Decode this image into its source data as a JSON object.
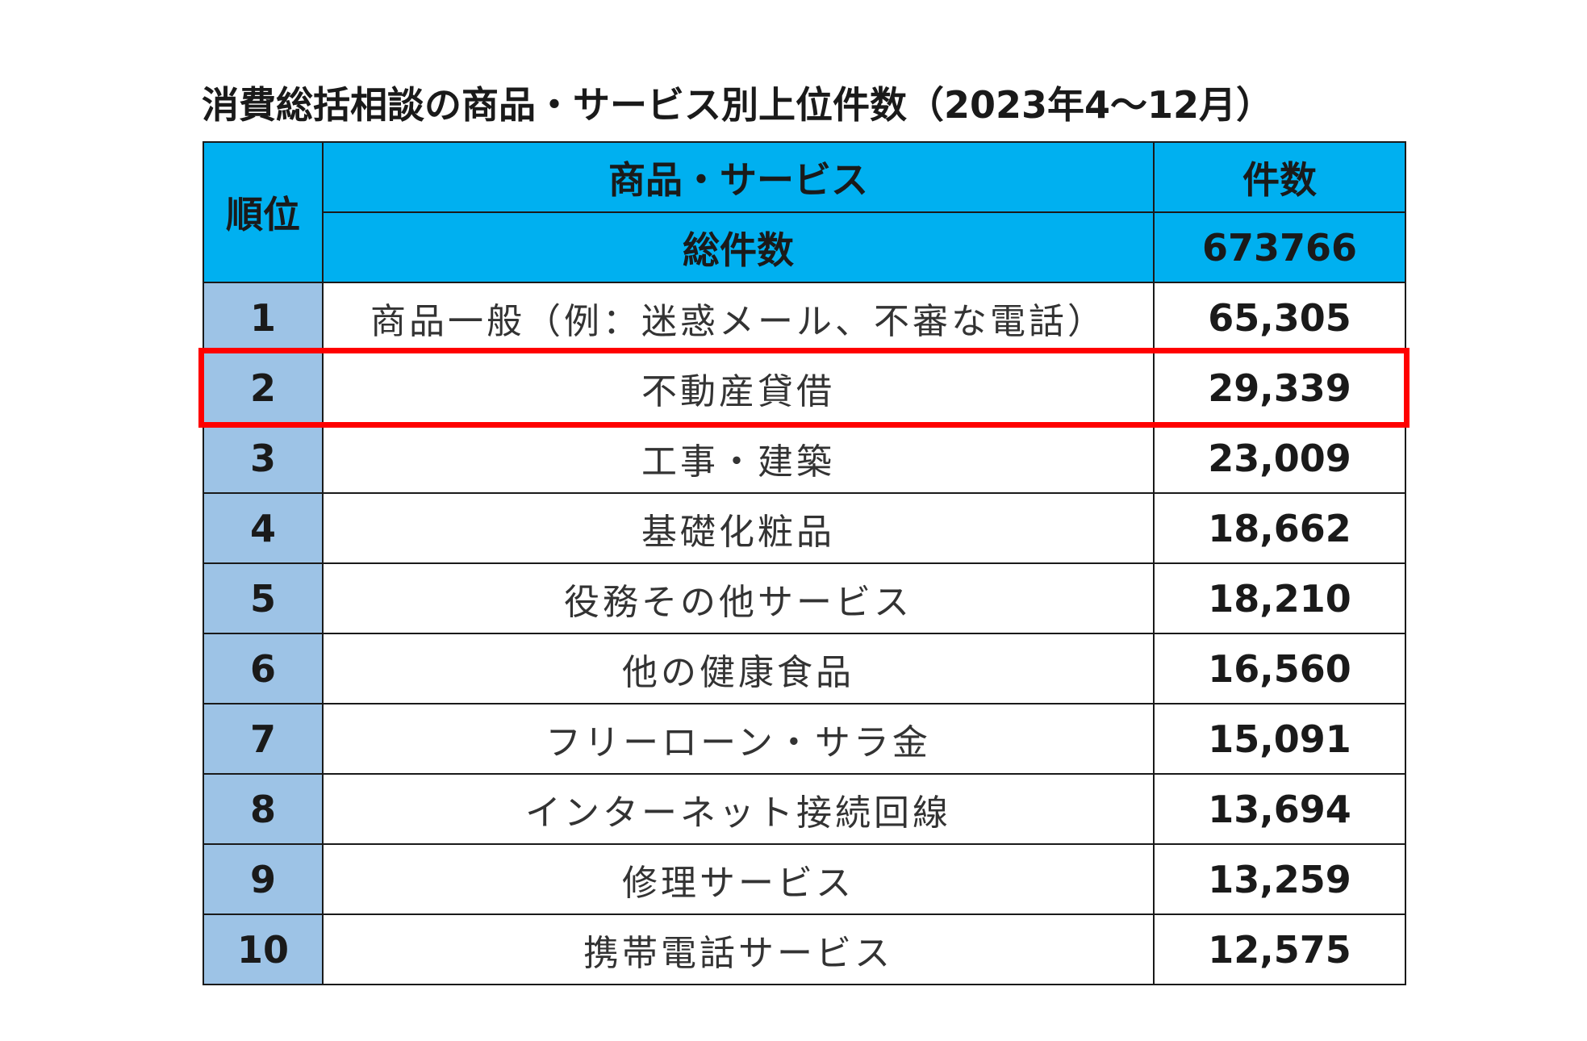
{
  "chart_data": {
    "type": "table",
    "title": "消費総括相談の商品・サービス別上位件数（2023年4～12月）",
    "headers": {
      "rank": "順位",
      "item": "商品・サービス",
      "count": "件数",
      "total_label": "総件数",
      "total_value": "673766"
    },
    "rows": [
      {
        "rank": "1",
        "item": "商品一般（例：迷惑メール、不審な電話）",
        "count": "65,305",
        "value": 65305
      },
      {
        "rank": "2",
        "item": "不動産貸借",
        "count": "29,339",
        "value": 29339,
        "highlighted": true
      },
      {
        "rank": "3",
        "item": "工事・建築",
        "count": "23,009",
        "value": 23009
      },
      {
        "rank": "4",
        "item": "基礎化粧品",
        "count": "18,662",
        "value": 18662
      },
      {
        "rank": "5",
        "item": "役務その他サービス",
        "count": "18,210",
        "value": 18210
      },
      {
        "rank": "6",
        "item": "他の健康食品",
        "count": "16,560",
        "value": 16560
      },
      {
        "rank": "7",
        "item": "フリーローン・サラ金",
        "count": "15,091",
        "value": 15091
      },
      {
        "rank": "8",
        "item": "インターネット接続回線",
        "count": "13,694",
        "value": 13694
      },
      {
        "rank": "9",
        "item": "修理サービス",
        "count": "13,259",
        "value": 13259
      },
      {
        "rank": "10",
        "item": "携帯電話サービス",
        "count": "12,575",
        "value": 12575
      }
    ],
    "colors": {
      "header_bg": "#00b0f0",
      "rank_bg": "#9dc3e6",
      "highlight_border": "#ff0000"
    }
  }
}
